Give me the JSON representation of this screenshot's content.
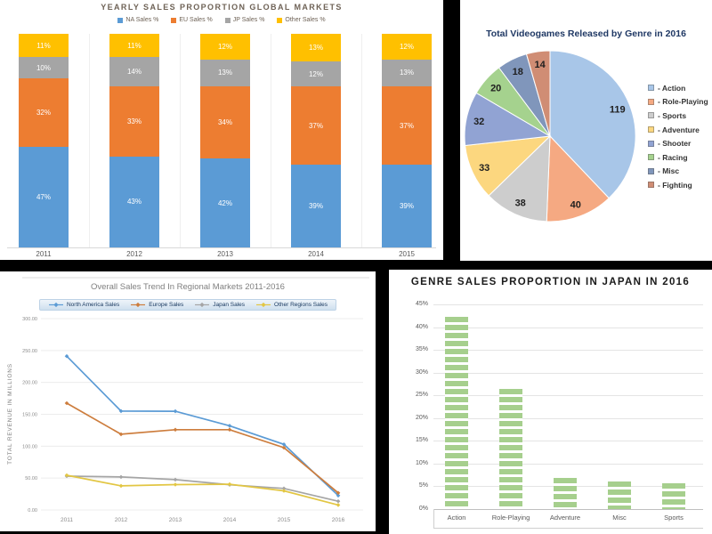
{
  "layout_colors": {
    "canvas_background": "#000000",
    "panel_background": "#ffffff"
  },
  "chart_data": [
    {
      "type": "bar",
      "variant": "stacked-100",
      "title": "YEARLY SALES PROPORTION GLOBAL MARKETS",
      "categories": [
        "2011",
        "2012",
        "2013",
        "2014",
        "2015"
      ],
      "series": [
        {
          "name": "NA Sales %",
          "color": "#5b9bd5",
          "values": [
            47,
            43,
            42,
            39,
            39
          ]
        },
        {
          "name": "EU Sales %",
          "color": "#ed7d31",
          "values": [
            32,
            33,
            34,
            37,
            37
          ]
        },
        {
          "name": "JP Sales %",
          "color": "#a5a5a5",
          "values": [
            10,
            14,
            13,
            12,
            13
          ]
        },
        {
          "name": "Other Sales %",
          "color": "#ffc000",
          "values": [
            11,
            11,
            12,
            13,
            12
          ]
        }
      ],
      "label_suffix": "%",
      "legend_position": "top",
      "grid": "vertical-category-separators"
    },
    {
      "type": "pie",
      "title": "Total Videogames Released by Genre in 2016",
      "slices": [
        {
          "label": "Action",
          "value": 119,
          "color": "#a8c6e8"
        },
        {
          "label": "Role-Playing",
          "value": 40,
          "color": "#f5a982"
        },
        {
          "label": "Sports",
          "value": 38,
          "color": "#cdcdcd"
        },
        {
          "label": "Adventure",
          "value": 33,
          "color": "#fcd77f"
        },
        {
          "label": "Shooter",
          "value": 32,
          "color": "#91a3d3"
        },
        {
          "label": "Racing",
          "value": 20,
          "color": "#a5d28e"
        },
        {
          "label": "Misc",
          "value": 18,
          "color": "#8096bb"
        },
        {
          "label": "Fighting",
          "value": 14,
          "color": "#d08d74"
        }
      ],
      "legend_prefix": "- ",
      "legend_position": "right",
      "start_angle_deg": 0,
      "direction": "clockwise"
    },
    {
      "type": "line",
      "title": "Overall Sales Trend In Regional Markets 2011-2016",
      "x": [
        "2011",
        "2012",
        "2013",
        "2014",
        "2015",
        "2016"
      ],
      "xlabel": "",
      "ylabel": "TOTAL REVENUE IN MILLIONS",
      "ylim": [
        0,
        300
      ],
      "yticks": [
        "0.00",
        "50.00",
        "100.00",
        "150.00",
        "200.00",
        "250.00",
        "300.00"
      ],
      "grid": "horizontal",
      "legend_position": "top",
      "series": [
        {
          "name": "North America Sales",
          "color": "#5b9bd5",
          "values": [
            241.1,
            155.0,
            154.8,
            132.0,
            102.8,
            22.6
          ]
        },
        {
          "name": "Europe Sales",
          "color": "#cd7d3d",
          "values": [
            167.4,
            118.8,
            125.8,
            125.9,
            97.7,
            26.8
          ]
        },
        {
          "name": "Japan Sales",
          "color": "#a5a5a5",
          "values": [
            53.0,
            51.7,
            47.6,
            39.5,
            33.7,
            13.7
          ]
        },
        {
          "name": "Other Regions Sales",
          "color": "#e2c643",
          "values": [
            54.4,
            37.8,
            39.8,
            40.3,
            30.0,
            7.8
          ]
        }
      ]
    },
    {
      "type": "bar",
      "variant": "striped-bars",
      "title": "GENRE SALES PROPORTION IN JAPAN IN 2016",
      "categories": [
        "Action",
        "Role-Playing",
        "Adventure",
        "Misc",
        "Sports"
      ],
      "values": [
        42.3,
        26.5,
        6.9,
        6.0,
        5.7
      ],
      "bar_color": "#a6cf8d",
      "unit": "%",
      "ylim": [
        0,
        45
      ],
      "yticks": [
        "0%",
        "5%",
        "10%",
        "15%",
        "20%",
        "25%",
        "30%",
        "35%",
        "40%",
        "45%"
      ],
      "grid": "horizontal"
    }
  ]
}
